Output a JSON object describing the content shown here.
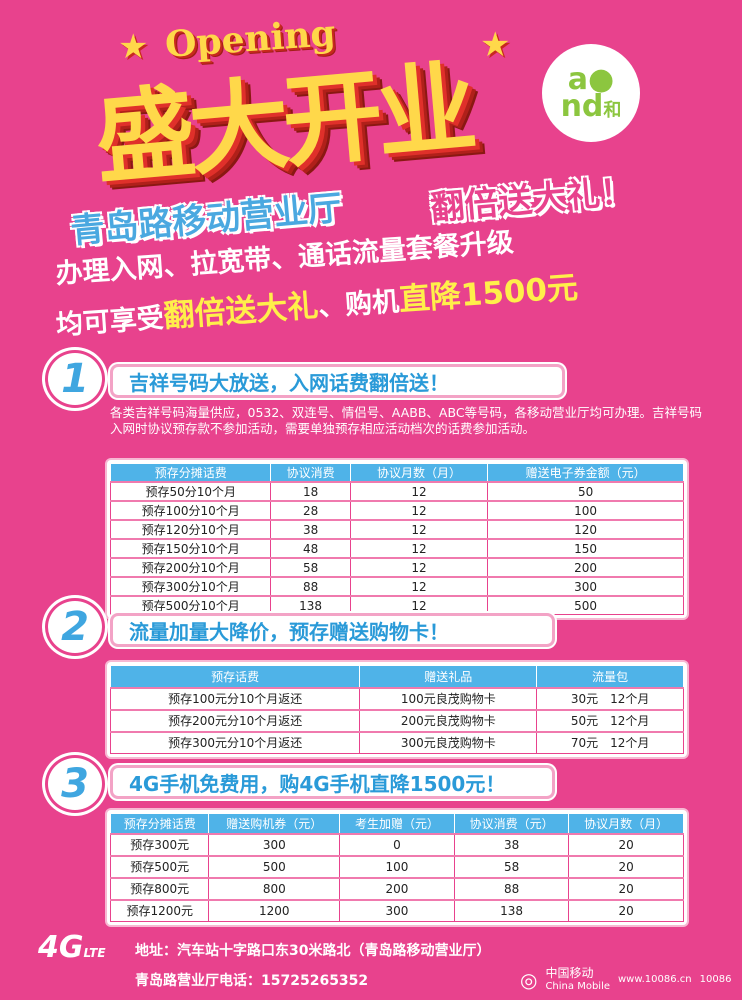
{
  "header": {
    "opening": "Opening",
    "title": "盛大开业",
    "brand_logo": "and和",
    "store_name": "青岛路移动营业厅",
    "promo": "翻倍送大礼！",
    "line1": "办理入网、拉宽带、通话流量套餐升级",
    "line2_a": "均可享受",
    "line2_b": "翻倍送大礼",
    "line2_c": "、购机",
    "line2_d": "直降1500元"
  },
  "colors": {
    "background": "#e8428d",
    "accent_blue": "#4fb3e8",
    "accent_yellow": "#ffd84a"
  },
  "section1": {
    "number": "1",
    "title": "吉祥号码大放送，入网话费翻倍送！",
    "desc": "各类吉祥号码海量供应，0532、双连号、情侣号、AABB、ABC等号码，各移动营业厅均可办理。吉祥号码入网时协议预存款不参加活动，需要单独预存相应活动档次的话费参加活动。",
    "table": {
      "headers": [
        "预存分摊话费",
        "协议消费",
        "协议月数（月）",
        "赠送电子券金额（元）"
      ],
      "rows": [
        [
          "预存50分10个月",
          "18",
          "12",
          "50"
        ],
        [
          "预存100分10个月",
          "28",
          "12",
          "100"
        ],
        [
          "预存120分10个月",
          "38",
          "12",
          "120"
        ],
        [
          "预存150分10个月",
          "48",
          "12",
          "150"
        ],
        [
          "预存200分10个月",
          "58",
          "12",
          "200"
        ],
        [
          "预存300分10个月",
          "88",
          "12",
          "300"
        ],
        [
          "预存500分10个月",
          "138",
          "12",
          "500"
        ]
      ]
    }
  },
  "section2": {
    "number": "2",
    "title": "流量加量大降价，预存赠送购物卡！",
    "table": {
      "headers": [
        "预存话费",
        "赠送礼品",
        "流量包"
      ],
      "rows": [
        [
          "预存100元分10个月返还",
          "100元良茂购物卡",
          "30元　12个月"
        ],
        [
          "预存200元分10个月返还",
          "200元良茂购物卡",
          "50元　12个月"
        ],
        [
          "预存300元分10个月返还",
          "300元良茂购物卡",
          "70元　12个月"
        ]
      ]
    }
  },
  "section3": {
    "number": "3",
    "title": "4G手机免费用，购4G手机直降1500元！",
    "table": {
      "headers": [
        "预存分摊话费",
        "赠送购机券（元）",
        "考生加赠（元）",
        "协议消费（元）",
        "协议月数（月）"
      ],
      "rows": [
        [
          "预存300元",
          "300",
          "0",
          "38",
          "20"
        ],
        [
          "预存500元",
          "500",
          "100",
          "58",
          "20"
        ],
        [
          "预存800元",
          "800",
          "200",
          "88",
          "20"
        ],
        [
          "预存1200元",
          "1200",
          "300",
          "138",
          "20"
        ]
      ]
    }
  },
  "footer": {
    "lte_logo": "4G LTE",
    "address": "地址：汽车站十字路口东30米路北（青岛路移动营业厅）",
    "phone": "青岛路营业厅电话：15725265352",
    "cm_cn": "中国移动",
    "cm_en": "China Mobile",
    "web": "www.10086.cn",
    "hotline": "10086"
  }
}
